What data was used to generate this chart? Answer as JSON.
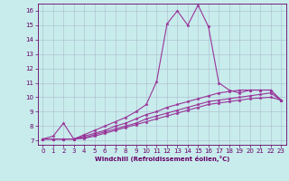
{
  "xlabel": "Windchill (Refroidissement éolien,°C)",
  "background_color": "#c8ecec",
  "line_color": "#993399",
  "grid_color": "#aabbcc",
  "xlim": [
    -0.5,
    23.5
  ],
  "ylim": [
    6.7,
    16.5
  ],
  "x_ticks": [
    0,
    1,
    2,
    3,
    4,
    5,
    6,
    7,
    8,
    9,
    10,
    11,
    12,
    13,
    14,
    15,
    16,
    17,
    18,
    19,
    20,
    21,
    22,
    23
  ],
  "y_ticks": [
    7,
    8,
    9,
    10,
    11,
    12,
    13,
    14,
    15,
    16
  ],
  "line1_x": [
    0,
    1,
    2,
    3,
    4,
    5,
    6,
    7,
    8,
    9,
    10,
    11,
    12,
    13,
    14,
    15,
    16,
    17,
    18,
    19,
    20,
    21,
    22,
    23
  ],
  "line1_y": [
    7.1,
    7.3,
    8.2,
    7.1,
    7.4,
    7.7,
    8.0,
    8.3,
    8.6,
    9.0,
    9.5,
    11.1,
    15.1,
    16.0,
    15.0,
    16.4,
    14.9,
    11.0,
    10.5,
    10.3,
    10.5,
    10.5,
    10.5,
    9.8
  ],
  "line2_x": [
    0,
    1,
    2,
    3,
    4,
    5,
    6,
    7,
    8,
    9,
    10,
    11,
    12,
    13,
    14,
    15,
    16,
    17,
    18,
    19,
    20,
    21,
    22,
    23
  ],
  "line2_y": [
    7.1,
    7.1,
    7.1,
    7.1,
    7.3,
    7.5,
    7.7,
    8.0,
    8.2,
    8.5,
    8.8,
    9.0,
    9.3,
    9.5,
    9.7,
    9.9,
    10.1,
    10.3,
    10.4,
    10.5,
    10.5,
    10.5,
    10.5,
    9.8
  ],
  "line3_x": [
    0,
    1,
    2,
    3,
    4,
    5,
    6,
    7,
    8,
    9,
    10,
    11,
    12,
    13,
    14,
    15,
    16,
    17,
    18,
    19,
    20,
    21,
    22,
    23
  ],
  "line3_y": [
    7.1,
    7.1,
    7.1,
    7.1,
    7.2,
    7.4,
    7.6,
    7.8,
    8.0,
    8.2,
    8.5,
    8.7,
    8.9,
    9.1,
    9.3,
    9.5,
    9.7,
    9.8,
    9.9,
    10.0,
    10.1,
    10.2,
    10.3,
    9.8
  ],
  "line4_x": [
    0,
    1,
    2,
    3,
    4,
    5,
    6,
    7,
    8,
    9,
    10,
    11,
    12,
    13,
    14,
    15,
    16,
    17,
    18,
    19,
    20,
    21,
    22,
    23
  ],
  "line4_y": [
    7.1,
    7.1,
    7.1,
    7.1,
    7.15,
    7.3,
    7.5,
    7.7,
    7.9,
    8.1,
    8.3,
    8.5,
    8.7,
    8.9,
    9.1,
    9.3,
    9.5,
    9.6,
    9.7,
    9.8,
    9.9,
    9.95,
    10.0,
    9.8
  ],
  "tick_color": "#660066",
  "label_fontsize": 5,
  "tick_fontsize": 5,
  "linewidth": 0.8,
  "markersize": 2.5
}
